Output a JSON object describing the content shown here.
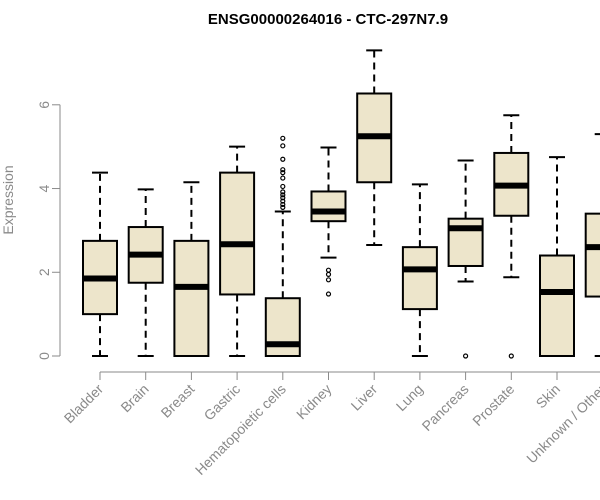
{
  "chart_data": {
    "type": "boxplot",
    "title": "ENSG00000264016 - CTC-297N7.9",
    "ylabel": "Expression",
    "xlabel": "",
    "ylim": [
      0,
      7.5
    ],
    "yticks": [
      0,
      2,
      4,
      6
    ],
    "categories": [
      "Bladder",
      "Brain",
      "Breast",
      "Gastric",
      "Hematopoietic cells",
      "Kidney",
      "Liver",
      "Lung",
      "Pancreas",
      "Prostate",
      "Skin",
      "Unknown / Other"
    ],
    "boxes": [
      {
        "min": 0.0,
        "q1": 1.0,
        "median": 1.85,
        "q3": 2.75,
        "max": 4.38,
        "outliers": []
      },
      {
        "min": 0.0,
        "q1": 1.75,
        "median": 2.42,
        "q3": 3.08,
        "max": 3.98,
        "outliers": []
      },
      {
        "min": 0.0,
        "q1": 0.0,
        "median": 1.65,
        "q3": 2.75,
        "max": 4.15,
        "outliers": []
      },
      {
        "min": 0.0,
        "q1": 1.47,
        "median": 2.67,
        "q3": 4.38,
        "max": 5.0,
        "outliers": []
      },
      {
        "min": 0.0,
        "q1": 0.0,
        "median": 0.28,
        "q3": 1.38,
        "max": 3.45,
        "outliers": [
          3.55,
          3.62,
          3.7,
          3.78,
          3.85,
          3.92,
          4.05,
          4.25,
          4.38,
          4.45,
          4.7,
          5.02,
          5.2
        ]
      },
      {
        "min": 2.35,
        "q1": 3.22,
        "median": 3.45,
        "q3": 3.93,
        "max": 4.98,
        "outliers": [
          1.48,
          1.82,
          1.95,
          2.05
        ]
      },
      {
        "min": 2.65,
        "q1": 4.15,
        "median": 5.25,
        "q3": 6.27,
        "max": 7.3,
        "outliers": []
      },
      {
        "min": 0.0,
        "q1": 1.12,
        "median": 2.07,
        "q3": 2.6,
        "max": 4.1,
        "outliers": []
      },
      {
        "min": 1.78,
        "q1": 2.15,
        "median": 3.05,
        "q3": 3.28,
        "max": 4.67,
        "outliers": [
          0.0
        ]
      },
      {
        "min": 1.88,
        "q1": 3.35,
        "median": 4.07,
        "q3": 4.85,
        "max": 5.75,
        "outliers": [
          0.0
        ]
      },
      {
        "min": 0.0,
        "q1": 0.0,
        "median": 1.53,
        "q3": 2.4,
        "max": 4.75,
        "outliers": []
      },
      {
        "min": 0.0,
        "q1": 1.42,
        "median": 2.6,
        "q3": 3.4,
        "max": 5.3,
        "outliers": []
      }
    ],
    "box_fill": "#ede5cb",
    "line_color": "#000000",
    "axis_color": "#8a8a8a",
    "grid": false
  }
}
